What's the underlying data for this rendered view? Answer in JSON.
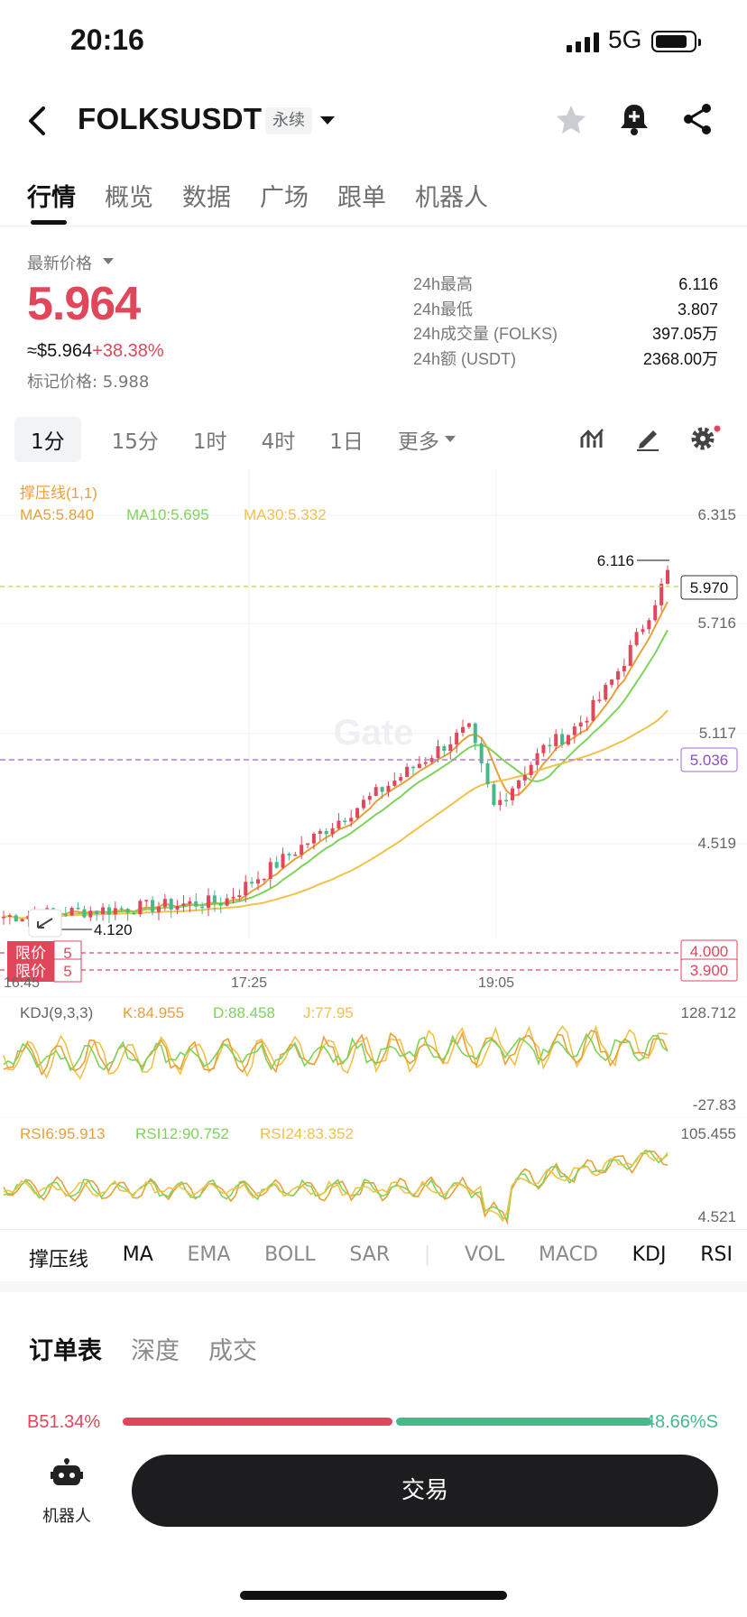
{
  "status_bar": {
    "time": "20:16",
    "network": "5G"
  },
  "header": {
    "title": "FOLKSUSDT",
    "contract_type": "永续"
  },
  "tabs": [
    {
      "label": "行情"
    },
    {
      "label": "概览"
    },
    {
      "label": "数据"
    },
    {
      "label": "广场"
    },
    {
      "label": "跟单"
    },
    {
      "label": "机器人"
    }
  ],
  "price_block": {
    "latest_label": "最新价格",
    "last_price": "5.964",
    "usd_price": "≈$5.964",
    "change_pct": "+38.38%",
    "mark_price": "标记价格: 5.988"
  },
  "stats": [
    {
      "label": "24h最高",
      "value": "6.116"
    },
    {
      "label": "24h最低",
      "value": "3.807"
    },
    {
      "label": "24h成交量 (FOLKS)",
      "value": "397.05万"
    },
    {
      "label": "24h额 (USDT)",
      "value": "2368.00万"
    }
  ],
  "timeframes": {
    "items": [
      "1分",
      "15分",
      "1时",
      "4时",
      "1日"
    ],
    "selected": "1分",
    "more": "更多"
  },
  "main_chart": {
    "legend_title": "撑压线(1,1)",
    "ma_legend": [
      {
        "label": "MA5:5.840",
        "color": "#e8a13a"
      },
      {
        "label": "MA10:5.695",
        "color": "#7ed35b"
      },
      {
        "label": "MA30:5.332",
        "color": "#f0c24a"
      }
    ],
    "y_ticks": [
      "6.315",
      "5.716",
      "5.117",
      "4.519"
    ],
    "x_ticks": [
      "16:45",
      "17:25",
      "19:05"
    ],
    "high_marker": "6.116",
    "low_marker": "4.120",
    "current_price_tag": "5.970",
    "support_tag": "5.036",
    "orders": [
      {
        "label": "限价",
        "qty": "5",
        "price": "4.000"
      },
      {
        "label": "限价",
        "qty": "5",
        "price": "3.900"
      }
    ],
    "watermark": "Gate",
    "colors": {
      "up": "#e0475a",
      "down": "#47b88a"
    }
  },
  "kdj": {
    "legend": "KDJ(9,3,3)",
    "values": [
      {
        "label": "K:84.955",
        "color": "#e8a13a"
      },
      {
        "label": "D:88.458",
        "color": "#7ed35b"
      },
      {
        "label": "J:77.95",
        "color": "#f0c24a"
      }
    ],
    "top": "128.712",
    "bottom": "-27.83"
  },
  "rsi": {
    "values": [
      {
        "label": "RSI6:95.913",
        "color": "#e8a13a"
      },
      {
        "label": "RSI12:90.752",
        "color": "#7ed35b"
      },
      {
        "label": "RSI24:83.352",
        "color": "#f0c24a"
      }
    ],
    "top": "105.455",
    "bottom": "4.521"
  },
  "indicator_tabs": [
    "撑压线",
    "MA",
    "EMA",
    "BOLL",
    "SAR",
    "VOL",
    "MACD",
    "KDJ",
    "RSI"
  ],
  "order_tabs": [
    "订单表",
    "深度",
    "成交"
  ],
  "buy_sell": {
    "buy": "B51.34%",
    "sell": "48.66%S",
    "buy_ratio": 0.5134
  },
  "bottom": {
    "robot_label": "机器人",
    "trade_label": "交易"
  }
}
